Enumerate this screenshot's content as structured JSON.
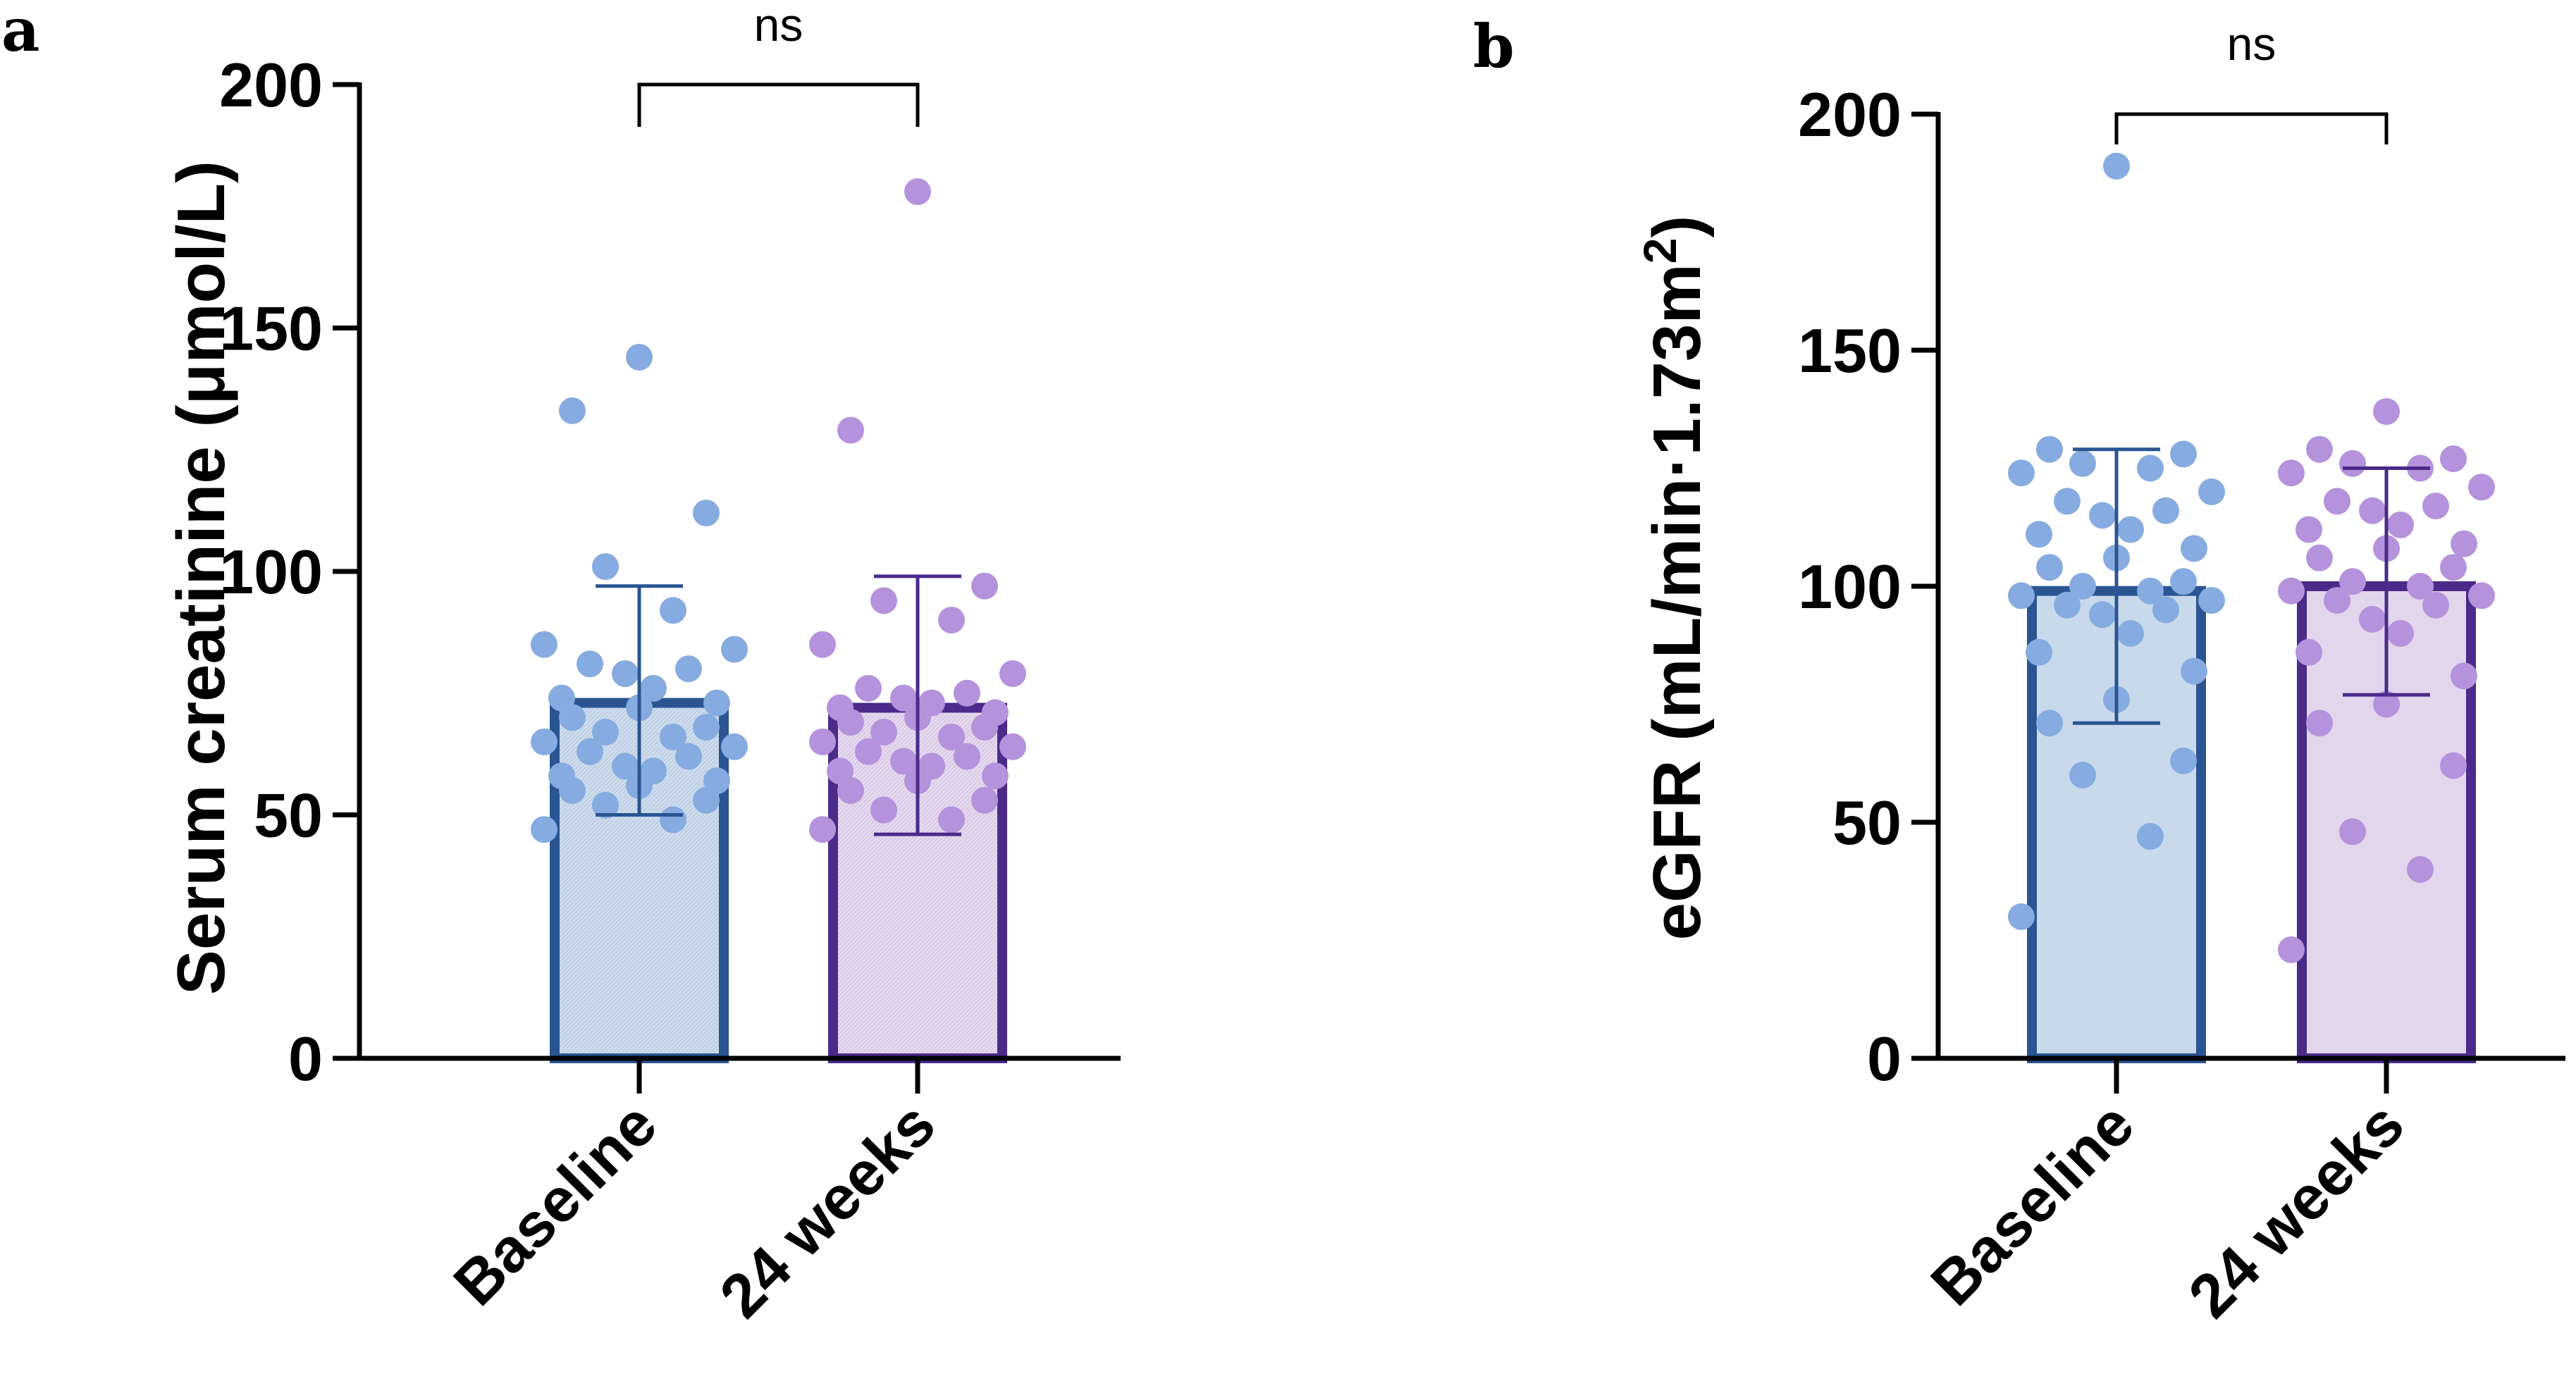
{
  "chart_data": [
    {
      "type": "bar",
      "panel": "a",
      "categories": [
        "Baseline",
        "24 weeks"
      ],
      "values": [
        73,
        72
      ],
      "error_bars": [
        [
          50,
          97
        ],
        [
          46,
          99
        ]
      ],
      "ylabel": "Serum creatinine (μmol/L)",
      "ylim": [
        0,
        200
      ],
      "yticks": [
        "0",
        "50",
        "100",
        "150",
        "200"
      ],
      "significance": "ns",
      "points": [
        [
          144,
          133,
          112,
          101,
          92,
          85,
          84,
          81,
          80,
          79,
          76,
          74,
          73,
          72,
          70,
          68,
          67,
          66,
          65,
          64,
          63,
          62,
          60,
          59,
          58,
          57,
          56,
          55,
          53,
          52,
          49,
          47
        ],
        [
          178,
          129,
          97,
          94,
          90,
          85,
          79,
          76,
          75,
          74,
          73,
          72,
          71,
          70,
          69,
          68,
          67,
          66,
          65,
          64,
          63,
          62,
          61,
          60,
          59,
          58,
          57,
          55,
          53,
          51,
          49,
          47
        ]
      ],
      "colors": {
        "fill": [
          "#c9d9ec",
          "#e3d5ec"
        ],
        "border": [
          "#2a5592",
          "#4b2a8a"
        ],
        "dots": [
          "#86abe0",
          "#b592dc"
        ]
      }
    },
    {
      "type": "bar",
      "panel": "b",
      "categories": [
        "Baseline",
        "24 weeks"
      ],
      "values": [
        99,
        100
      ],
      "error_bars": [
        [
          71,
          129
        ],
        [
          77,
          125
        ]
      ],
      "ylabel": "eGFR (mL/min·1.73m",
      "ylabel_sup": "2",
      "ylabel_close": ")",
      "ylim": [
        0,
        200
      ],
      "yticks": [
        "0",
        "50",
        "100",
        "150",
        "200"
      ],
      "significance": "ns",
      "points": [
        [
          189,
          129,
          128,
          126,
          125,
          124,
          120,
          118,
          116,
          115,
          112,
          111,
          108,
          106,
          104,
          101,
          100,
          99,
          98,
          97,
          96,
          95,
          94,
          90,
          86,
          82,
          76,
          71,
          63,
          60,
          47,
          30
        ],
        [
          137,
          129,
          127,
          126,
          125,
          124,
          121,
          118,
          117,
          116,
          113,
          112,
          109,
          108,
          106,
          104,
          101,
          100,
          99,
          98,
          97,
          96,
          93,
          90,
          86,
          81,
          75,
          71,
          62,
          48,
          40,
          23
        ]
      ],
      "colors": {
        "fill": [
          "#c9d9ec",
          "#e3d5ec"
        ],
        "border": [
          "#2a5592",
          "#4b2a8a"
        ],
        "dots": [
          "#86abe0",
          "#b592dc"
        ]
      }
    }
  ]
}
